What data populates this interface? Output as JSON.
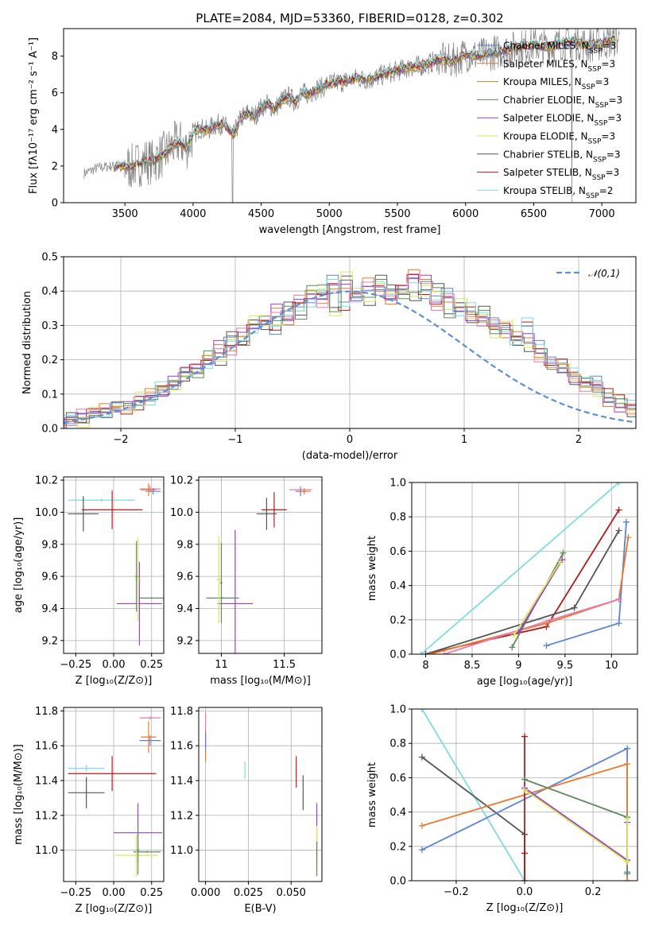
{
  "colors": {
    "chabrier_miles": "#5b83d4",
    "salpeter_miles": "#e8792d",
    "kroupa_miles": "#a88a2c",
    "chabrier_elodie": "#5e8a5e",
    "salpeter_elodie": "#9a3fc9",
    "kroupa_elodie": "#d7e85a",
    "chabrier_stelib": "#555555",
    "salpeter_stelib": "#b01c1c",
    "kroupa_stelib": "#7edbe0",
    "pink": "#e87ab0",
    "spectrum": "#808080",
    "normal_curve": "#5b8fd6"
  },
  "chart_data": [
    {
      "id": "spectrum",
      "type": "line",
      "title": "PLATE=2084, MJD=53360, FIBERID=0128, z=0.302",
      "xlabel": "wavelength [Angstrom, rest frame]",
      "ylabel": "Flux [fλ10⁻¹⁷ erg cm⁻² s⁻¹ A⁻¹]",
      "xlim": [
        3050,
        7250
      ],
      "ylim": [
        0,
        9.5
      ],
      "xticks": [
        3500,
        4000,
        4500,
        5000,
        5500,
        6000,
        6500,
        7000
      ],
      "yticks": [
        0,
        2,
        4,
        6,
        8
      ],
      "grid": false,
      "legend_position": "top-right",
      "legend": [
        "Chabrier MILES, N_SSP=3",
        "Salpeter MILES, N_SSP=3",
        "Kroupa MILES, N_SSP=3",
        "Chabrier ELODIE, N_SSP=3",
        "Salpeter ELODIE, N_SSP=3",
        "Kroupa ELODIE, N_SSP=3",
        "Chabrier STELIB, N_SSP=3",
        "Salpeter STELIB, N_SSP=3",
        "Kroupa STELIB, N_SSP=2"
      ],
      "data_x": [
        3200,
        3300,
        3400,
        3500,
        3550,
        3600,
        3650,
        3700,
        3750,
        3800,
        3850,
        3900,
        3950,
        4000,
        4050,
        4100,
        4150,
        4200,
        4250,
        4300,
        4350,
        4400,
        4450,
        4500,
        4550,
        4600,
        4650,
        4700,
        4750,
        4800,
        4850,
        4900,
        4950,
        5000,
        5100,
        5200,
        5300,
        5400,
        5500,
        5600,
        5700,
        5800,
        5900,
        6000,
        6100,
        6200,
        6300,
        6400,
        6500,
        6600,
        6700,
        6800,
        6900,
        7000,
        7100
      ],
      "data_y": [
        1.6,
        1.9,
        2.0,
        2.0,
        1.95,
        2.1,
        2.3,
        2.2,
        2.5,
        2.7,
        3.1,
        3.3,
        3.0,
        3.7,
        4.1,
        3.9,
        4.2,
        4.3,
        4.1,
        3.7,
        4.6,
        4.9,
        4.7,
        5.2,
        5.4,
        5.1,
        5.6,
        5.8,
        5.5,
        6.0,
        5.9,
        6.2,
        6.3,
        6.5,
        6.6,
        6.8,
        6.7,
        7.0,
        7.2,
        7.4,
        7.5,
        7.8,
        7.7,
        8.1,
        8.0,
        8.2,
        8.3,
        8.5,
        8.6,
        8.5,
        8.7,
        8.8,
        8.6,
        8.7,
        8.9
      ]
    },
    {
      "id": "residuals",
      "type": "line",
      "xlabel": "(data-model)/error",
      "ylabel": "Normed distribution",
      "xlim": [
        -2.5,
        2.5
      ],
      "ylim": [
        0,
        0.5
      ],
      "xticks": [
        -2,
        -1,
        0,
        1,
        2
      ],
      "yticks": [
        0.0,
        0.1,
        0.2,
        0.3,
        0.4,
        0.5
      ],
      "grid": true,
      "legend_position": "top-right",
      "legend": [
        "𝒩(0,1)"
      ],
      "bin_width": 0.1,
      "bin_start": -2.5,
      "series": [
        {
          "values": [
            0.03,
            0.03,
            0.04,
            0.05,
            0.06,
            0.05,
            0.07,
            0.08,
            0.12,
            0.13,
            0.15,
            0.17,
            0.19,
            0.22,
            0.25,
            0.26,
            0.29,
            0.31,
            0.29,
            0.33,
            0.35,
            0.37,
            0.39,
            0.43,
            0.36,
            0.38,
            0.41,
            0.42,
            0.39,
            0.4,
            0.44,
            0.39,
            0.37,
            0.4,
            0.34,
            0.35,
            0.33,
            0.31,
            0.29,
            0.26,
            0.31,
            0.24,
            0.2,
            0.19,
            0.16,
            0.14,
            0.14,
            0.1,
            0.09,
            0.07,
            0.06
          ]
        },
        {
          "values": [
            0.02,
            0.04,
            0.05,
            0.06,
            0.06,
            0.07,
            0.08,
            0.1,
            0.11,
            0.14,
            0.16,
            0.18,
            0.2,
            0.24,
            0.23,
            0.28,
            0.3,
            0.32,
            0.35,
            0.31,
            0.38,
            0.39,
            0.36,
            0.41,
            0.42,
            0.38,
            0.43,
            0.4,
            0.37,
            0.41,
            0.45,
            0.43,
            0.36,
            0.38,
            0.35,
            0.33,
            0.31,
            0.3,
            0.28,
            0.27,
            0.26,
            0.21,
            0.19,
            0.17,
            0.15,
            0.12,
            0.12,
            0.08,
            0.06,
            0.05,
            0.04
          ]
        },
        {
          "values": [
            0.03,
            0.02,
            0.05,
            0.04,
            0.07,
            0.06,
            0.09,
            0.1,
            0.11,
            0.12,
            0.17,
            0.16,
            0.21,
            0.2,
            0.27,
            0.25,
            0.32,
            0.3,
            0.31,
            0.36,
            0.33,
            0.4,
            0.41,
            0.34,
            0.44,
            0.4,
            0.37,
            0.43,
            0.41,
            0.39,
            0.38,
            0.42,
            0.41,
            0.33,
            0.37,
            0.32,
            0.34,
            0.28,
            0.3,
            0.25,
            0.24,
            0.22,
            0.18,
            0.18,
            0.14,
            0.13,
            0.11,
            0.09,
            0.07,
            0.05,
            0.03
          ]
        }
      ],
      "normal_curve": {
        "mu": 0,
        "sigma": 1
      }
    },
    {
      "id": "age-vs-Z",
      "type": "scatter",
      "xlabel": "Z [log₁₀(Z/Z⊙)]",
      "ylabel": "age  [log₁₀(age/yr)]",
      "xlim": [
        -0.33,
        0.33
      ],
      "ylim": [
        9.12,
        10.22
      ],
      "xticks": [
        -0.25,
        0.0,
        0.25
      ],
      "xticklabels": [
        "−0.25",
        "0.00",
        "0.25"
      ],
      "yticks": [
        9.2,
        9.4,
        9.6,
        9.8,
        10.0,
        10.2
      ],
      "grid": true,
      "points": [
        {
          "x": -0.08,
          "y": 10.075,
          "xerr": 0.22,
          "yerr": 0.01,
          "color": "kroupa_stelib"
        },
        {
          "x": -0.01,
          "y": 10.015,
          "xerr": 0.2,
          "yerr": 0.12,
          "color": "salpeter_stelib"
        },
        {
          "x": -0.2,
          "y": 9.99,
          "xerr": 0.1,
          "yerr": 0.11,
          "color": "chabrier_stelib"
        },
        {
          "x": 0.24,
          "y": 10.145,
          "xerr": 0.07,
          "yerr": 0.02,
          "color": "pink"
        },
        {
          "x": 0.26,
          "y": 10.13,
          "xerr": 0.05,
          "yerr": 0.02,
          "color": "chabrier_miles"
        },
        {
          "x": 0.23,
          "y": 10.14,
          "xerr": 0.05,
          "yerr": 0.04,
          "color": "salpeter_miles"
        },
        {
          "x": 0.25,
          "y": 9.465,
          "xerr": 0.08,
          "yerr": 0.005,
          "color": "chabrier_elodie"
        },
        {
          "x": 0.17,
          "y": 9.43,
          "xerr": 0.15,
          "yerr": 0.26,
          "color": "salpeter_elodie"
        },
        {
          "x": 0.16,
          "y": 9.58,
          "xerr": 0.02,
          "yerr": 0.26,
          "color": "kroupa_elodie"
        },
        {
          "x": 0.15,
          "y": 9.6,
          "xerr": 0.01,
          "yerr": 0.22,
          "color": "chabrier_elodie"
        }
      ]
    },
    {
      "id": "age-vs-mass",
      "type": "scatter",
      "xlabel": "mass [log₁₀(M/M⊙)]",
      "xlim": [
        10.82,
        11.8
      ],
      "ylim": [
        9.12,
        10.22
      ],
      "xticks": [
        11.0,
        11.5
      ],
      "yticks": [
        9.2,
        9.4,
        9.6,
        9.8,
        10.0,
        10.2
      ],
      "grid": true,
      "points": [
        {
          "x": 11.63,
          "y": 10.14,
          "xerr": 0.09,
          "yerr": 0.01,
          "color": "pink"
        },
        {
          "x": 11.63,
          "y": 10.13,
          "xerr": 0.04,
          "yerr": 0.03,
          "color": "chabrier_miles"
        },
        {
          "x": 11.66,
          "y": 10.13,
          "xerr": 0.05,
          "yerr": 0.02,
          "color": "salpeter_miles"
        },
        {
          "x": 11.42,
          "y": 10.015,
          "xerr": 0.1,
          "yerr": 0.11,
          "color": "salpeter_stelib"
        },
        {
          "x": 11.36,
          "y": 9.99,
          "xerr": 0.08,
          "yerr": 0.1,
          "color": "chabrier_stelib"
        },
        {
          "x": 11.11,
          "y": 9.43,
          "xerr": 0.14,
          "yerr": 0.46,
          "color": "salpeter_elodie"
        },
        {
          "x": 11.01,
          "y": 9.465,
          "xerr": 0.13,
          "yerr": 0.005,
          "color": "chabrier_elodie"
        },
        {
          "x": 10.98,
          "y": 9.58,
          "xerr": 0.02,
          "yerr": 0.27,
          "color": "kroupa_elodie"
        },
        {
          "x": 11.0,
          "y": 9.56,
          "xerr": 0.01,
          "yerr": 0.25,
          "color": "chabrier_elodie"
        }
      ]
    },
    {
      "id": "weight-vs-age",
      "type": "line",
      "xlabel": "age  [log₁₀(age/yr)]",
      "ylabel": "mass weight",
      "xlim": [
        7.85,
        10.28
      ],
      "ylim": [
        0,
        1
      ],
      "xticks": [
        8.0,
        8.5,
        9.0,
        9.5,
        10.0
      ],
      "yticks": [
        0.0,
        0.2,
        0.4,
        0.6,
        0.8,
        1.0
      ],
      "grid": true,
      "series": [
        {
          "color": "kroupa_stelib",
          "x": [
            7.95,
            10.08
          ],
          "y": [
            0.0,
            1.0
          ]
        },
        {
          "color": "salpeter_stelib",
          "x": [
            8.0,
            9.3,
            10.08
          ],
          "y": [
            0.0,
            0.16,
            0.84
          ]
        },
        {
          "color": "chabrier_stelib",
          "x": [
            8.0,
            9.6,
            10.08
          ],
          "y": [
            0.0,
            0.27,
            0.72
          ]
        },
        {
          "color": "chabrier_miles",
          "x": [
            9.3,
            10.08,
            10.16
          ],
          "y": [
            0.05,
            0.18,
            0.77
          ]
        },
        {
          "color": "salpeter_miles",
          "x": [
            8.05,
            9.3,
            10.08,
            10.18
          ],
          "y": [
            0.0,
            0.18,
            0.32,
            0.68
          ]
        },
        {
          "color": "pink",
          "x": [
            8.2,
            9.35,
            10.08
          ],
          "y": [
            0.0,
            0.2,
            0.32
          ]
        },
        {
          "color": "chabrier_elodie",
          "x": [
            8.93,
            9.48
          ],
          "y": [
            0.04,
            0.59
          ]
        },
        {
          "color": "salpeter_elodie",
          "x": [
            9.0,
            9.47
          ],
          "y": [
            0.13,
            0.55
          ]
        },
        {
          "color": "kroupa_elodie",
          "x": [
            8.95,
            9.45
          ],
          "y": [
            0.11,
            0.54
          ]
        }
      ]
    },
    {
      "id": "mass-vs-Z",
      "type": "scatter",
      "xlabel": "Z [log₁₀(Z/Z⊙)]",
      "ylabel": "mass [log₁₀(M/M⊙)]",
      "xlim": [
        -0.33,
        0.33
      ],
      "ylim": [
        10.82,
        11.82
      ],
      "xticks": [
        -0.25,
        0.0,
        0.25
      ],
      "xticklabels": [
        "−0.25",
        "0.00",
        "0.25"
      ],
      "yticks": [
        11.0,
        11.2,
        11.4,
        11.6,
        11.8
      ],
      "grid": true,
      "points": [
        {
          "x": 0.24,
          "y": 11.76,
          "xerr": 0.07,
          "yerr": 0.01,
          "color": "pink"
        },
        {
          "x": 0.24,
          "y": 11.63,
          "xerr": 0.07,
          "yerr": 0.03,
          "color": "chabrier_miles"
        },
        {
          "x": 0.23,
          "y": 11.65,
          "xerr": 0.05,
          "yerr": 0.09,
          "color": "salpeter_miles"
        },
        {
          "x": -0.18,
          "y": 11.47,
          "xerr": 0.12,
          "yerr": 0.02,
          "color": "kroupa_stelib"
        },
        {
          "x": -0.01,
          "y": 11.44,
          "xerr": 0.29,
          "yerr": 0.1,
          "color": "salpeter_stelib"
        },
        {
          "x": -0.18,
          "y": 11.33,
          "xerr": 0.12,
          "yerr": 0.09,
          "color": "chabrier_stelib"
        },
        {
          "x": 0.16,
          "y": 11.1,
          "xerr": 0.16,
          "yerr": 0.17,
          "color": "salpeter_elodie"
        },
        {
          "x": 0.22,
          "y": 10.99,
          "xerr": 0.09,
          "yerr": 0.005,
          "color": "chabrier_elodie"
        },
        {
          "x": 0.15,
          "y": 10.97,
          "xerr": 0.14,
          "yerr": 0.12,
          "color": "kroupa_elodie"
        },
        {
          "x": 0.16,
          "y": 11.0,
          "xerr": 0.01,
          "yerr": 0.14,
          "color": "chabrier_elodie"
        }
      ]
    },
    {
      "id": "mass-vs-ebv",
      "type": "scatter",
      "xlabel": "E(B-V)",
      "xlim": [
        -0.004,
        0.068
      ],
      "ylim": [
        10.82,
        11.82
      ],
      "xticks": [
        0.0,
        0.025,
        0.05
      ],
      "xticklabels": [
        "0.000",
        "0.025",
        "0.050"
      ],
      "yticks": [
        11.0,
        11.2,
        11.4,
        11.6,
        11.8
      ],
      "grid": true,
      "points": [
        {
          "x": 0.0,
          "y": 11.7,
          "xerr": 0.0,
          "yerr": 0.09,
          "color": "pink"
        },
        {
          "x": 0.0,
          "y": 11.6,
          "xerr": 0.0,
          "yerr": 0.09,
          "color": "salpeter_miles"
        },
        {
          "x": 0.0,
          "y": 11.62,
          "xerr": 0.0,
          "yerr": 0.05,
          "color": "chabrier_miles"
        },
        {
          "x": 0.023,
          "y": 11.46,
          "xerr": 0.0,
          "yerr": 0.05,
          "color": "kroupa_stelib"
        },
        {
          "x": 0.053,
          "y": 11.45,
          "xerr": 0.0,
          "yerr": 0.09,
          "color": "salpeter_stelib"
        },
        {
          "x": 0.057,
          "y": 11.33,
          "xerr": 0.0,
          "yerr": 0.1,
          "color": "chabrier_stelib"
        },
        {
          "x": 0.065,
          "y": 11.1,
          "xerr": 0.0,
          "yerr": 0.17,
          "color": "salpeter_elodie"
        },
        {
          "x": 0.065,
          "y": 11.0,
          "xerr": 0.0,
          "yerr": 0.14,
          "color": "kroupa_elodie"
        },
        {
          "x": 0.065,
          "y": 10.95,
          "xerr": 0.0,
          "yerr": 0.1,
          "color": "chabrier_elodie"
        }
      ]
    },
    {
      "id": "weight-vs-Z",
      "type": "line",
      "xlabel": "Z [log₁₀(Z/Z⊙)]",
      "ylabel": "mass weight",
      "xlim": [
        -0.33,
        0.33
      ],
      "ylim": [
        0,
        1
      ],
      "xticks": [
        -0.2,
        0.0,
        0.2
      ],
      "xticklabels": [
        "−0.2",
        "0.0",
        "0.2"
      ],
      "yticks": [
        0.0,
        0.2,
        0.4,
        0.6,
        0.8,
        1.0
      ],
      "grid": true,
      "series": [
        {
          "color": "kroupa_stelib",
          "x": [
            -0.3,
            0.0
          ],
          "y": [
            1.0,
            0.0
          ]
        },
        {
          "color": "chabrier_stelib",
          "x": [
            -0.3,
            0.0,
            0.0
          ],
          "y": [
            0.72,
            0.27,
            0.0
          ]
        },
        {
          "color": "chabrier_miles",
          "x": [
            -0.3,
            0.3,
            0.3
          ],
          "y": [
            0.18,
            0.77,
            0.05
          ]
        },
        {
          "color": "salpeter_miles",
          "x": [
            -0.3,
            0.3,
            0.3
          ],
          "y": [
            0.32,
            0.68,
            0.0
          ]
        },
        {
          "color": "salpeter_stelib",
          "x": [
            0.0,
            0.0,
            0.0
          ],
          "y": [
            0.84,
            0.16,
            0.0
          ]
        },
        {
          "color": "chabrier_elodie",
          "x": [
            0.0,
            0.3,
            0.3
          ],
          "y": [
            0.59,
            0.37,
            0.04
          ]
        },
        {
          "color": "salpeter_elodie",
          "x": [
            0.0,
            0.3,
            0.3
          ],
          "y": [
            0.54,
            0.12,
            0.34
          ]
        },
        {
          "color": "kroupa_elodie",
          "x": [
            0.0,
            0.3,
            0.3
          ],
          "y": [
            0.53,
            0.11,
            0.36
          ]
        }
      ]
    }
  ]
}
